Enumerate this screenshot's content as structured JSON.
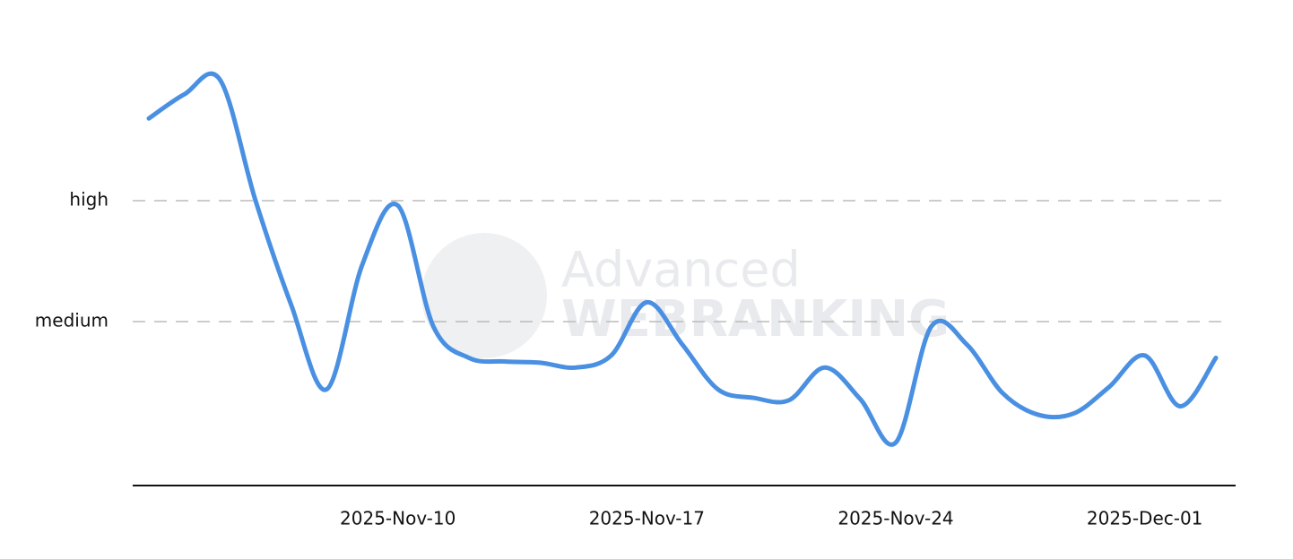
{
  "chart_data": {
    "type": "line",
    "x": [
      "2025-11-03",
      "2025-11-04",
      "2025-11-05",
      "2025-11-06",
      "2025-11-07",
      "2025-11-08",
      "2025-11-09",
      "2025-11-10",
      "2025-11-11",
      "2025-11-12",
      "2025-11-13",
      "2025-11-14",
      "2025-11-15",
      "2025-11-16",
      "2025-11-17",
      "2025-11-18",
      "2025-11-19",
      "2025-11-20",
      "2025-11-21",
      "2025-11-22",
      "2025-11-23",
      "2025-11-24",
      "2025-11-25",
      "2025-11-26",
      "2025-11-27",
      "2025-11-28",
      "2025-11-29",
      "2025-11-30",
      "2025-12-01",
      "2025-12-02",
      "2025-12-03"
    ],
    "series": [
      {
        "color": "#4a90e2",
        "values": [
          3.68,
          3.88,
          4.0,
          3.0,
          2.14,
          1.44,
          2.47,
          2.96,
          1.96,
          1.7,
          1.67,
          1.66,
          1.62,
          1.72,
          2.16,
          1.81,
          1.44,
          1.37,
          1.35,
          1.62,
          1.36,
          1.0,
          1.96,
          1.81,
          1.41,
          1.23,
          1.24,
          1.46,
          1.72,
          1.3,
          1.7
        ]
      }
    ],
    "xlim": [
      "2025-11-03",
      "2025-12-03"
    ],
    "xticks": [
      {
        "value": "2025-11-10",
        "label": "2025-Nov-10"
      },
      {
        "value": "2025-11-17",
        "label": "2025-Nov-17"
      },
      {
        "value": "2025-11-24",
        "label": "2025-Nov-24"
      },
      {
        "value": "2025-12-01",
        "label": "2025-Dec-01"
      }
    ],
    "ylim": [
      0.65,
      4.2
    ],
    "yticks": [
      {
        "value": 2,
        "label": "medium"
      },
      {
        "value": 3,
        "label": "high"
      }
    ],
    "grid": true,
    "watermark": [
      "Advanced",
      "WEBRANKING"
    ]
  }
}
